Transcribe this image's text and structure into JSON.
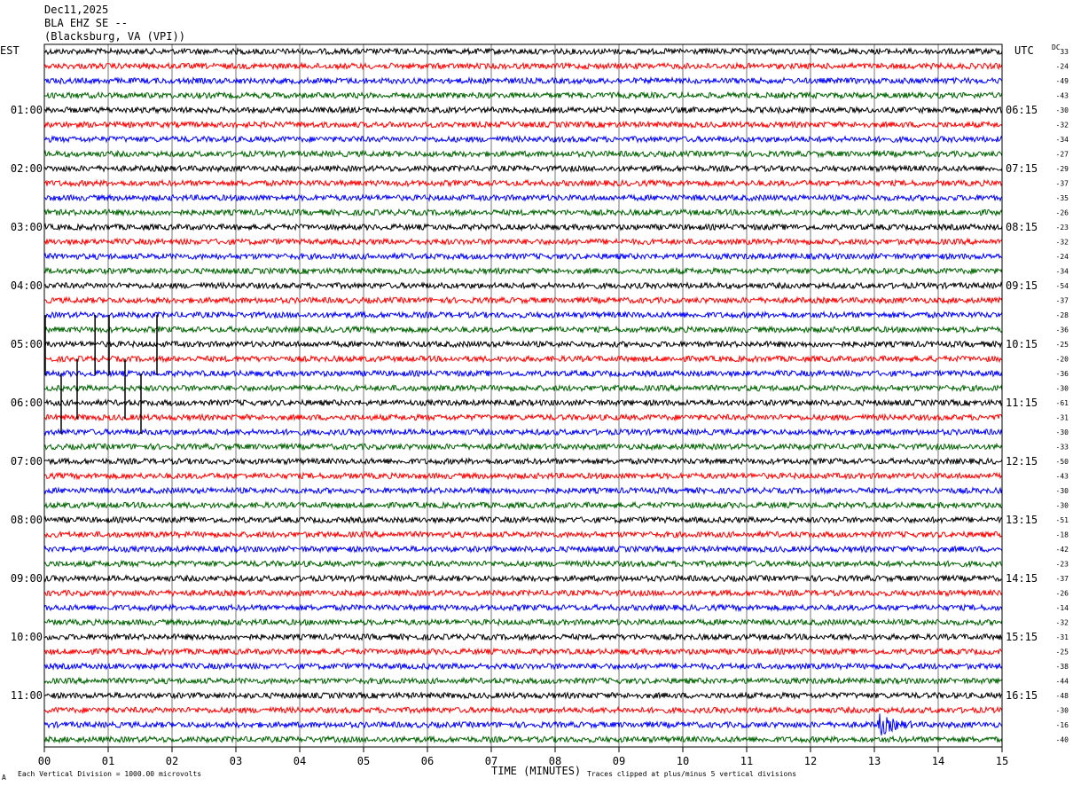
{
  "header": {
    "date": "Dec11,2025",
    "station": "BLA EHZ SE --",
    "location": "(Blacksburg, VA (VPI))"
  },
  "left_axis_label": "EST",
  "right_axis_label": "UTC",
  "dc_label": "DC",
  "x_axis_label": "TIME (MINUTES)",
  "footer_scale": "Each Vertical Division = 1000.00 microvolts",
  "footer_clip": "Traces clipped at plus/minus 5 vertical divisions",
  "footer_mark": "A",
  "colors": {
    "black": "#000000",
    "red": "#ff0000",
    "blue": "#0000ff",
    "green": "#006400",
    "grid": "#777777"
  },
  "chart_data": {
    "type": "line",
    "title": "",
    "xlabel": "TIME (MINUTES)",
    "ylabel": "",
    "xlim": [
      0,
      15
    ],
    "x_ticks": [
      "00",
      "01",
      "02",
      "03",
      "04",
      "05",
      "06",
      "07",
      "08",
      "09",
      "10",
      "11",
      "12",
      "13",
      "14",
      "15"
    ],
    "trace_count": 48,
    "trace_color_cycle": [
      "black",
      "red",
      "blue",
      "green"
    ],
    "left_hour_labels": [
      "01:00",
      "02:00",
      "03:00",
      "04:00",
      "05:00",
      "06:00",
      "07:00",
      "08:00",
      "09:00",
      "10:00",
      "11:00"
    ],
    "right_hour_labels": [
      "06:15",
      "07:15",
      "08:15",
      "09:15",
      "10:15",
      "11:15",
      "12:15",
      "13:15",
      "14:15",
      "15:15",
      "16:15"
    ],
    "dc_offsets": [
      "33",
      "-24",
      "-49",
      "-43",
      "-30",
      "-32",
      "-34",
      "-27",
      "-29",
      "-37",
      "-35",
      "-26",
      "-23",
      "-32",
      "-24",
      "-34",
      "-54",
      "-37",
      "-28",
      "-36",
      "-25",
      "-20",
      "-36",
      "-30",
      "-61",
      "-31",
      "-30",
      "-33",
      "-50",
      "-43",
      "-30",
      "-30",
      "-51",
      "-18",
      "-42",
      "-23",
      "-37",
      "-26",
      "-14",
      "-32",
      "-31",
      "-25",
      "-38",
      "-44",
      "-48",
      "-30",
      "-16",
      "-40"
    ],
    "events": [
      {
        "trace": 20,
        "minute": 0.0,
        "note": "clipped spike"
      },
      {
        "trace": 20,
        "minute": 0.78,
        "note": "clipped spike"
      },
      {
        "trace": 20,
        "minute": 1.0,
        "note": "clipped spike"
      },
      {
        "trace": 20,
        "minute": 1.75,
        "note": "clipped spike"
      },
      {
        "trace": 23,
        "minute": 0.5,
        "note": "clipped spike"
      },
      {
        "trace": 23,
        "minute": 1.25,
        "note": "clipped spike"
      },
      {
        "trace": 24,
        "minute": 0.25,
        "note": "clipped spike"
      },
      {
        "trace": 24,
        "minute": 1.5,
        "note": "clipped spike"
      },
      {
        "trace": 46,
        "minute": 13.1,
        "note": "burst"
      }
    ]
  }
}
